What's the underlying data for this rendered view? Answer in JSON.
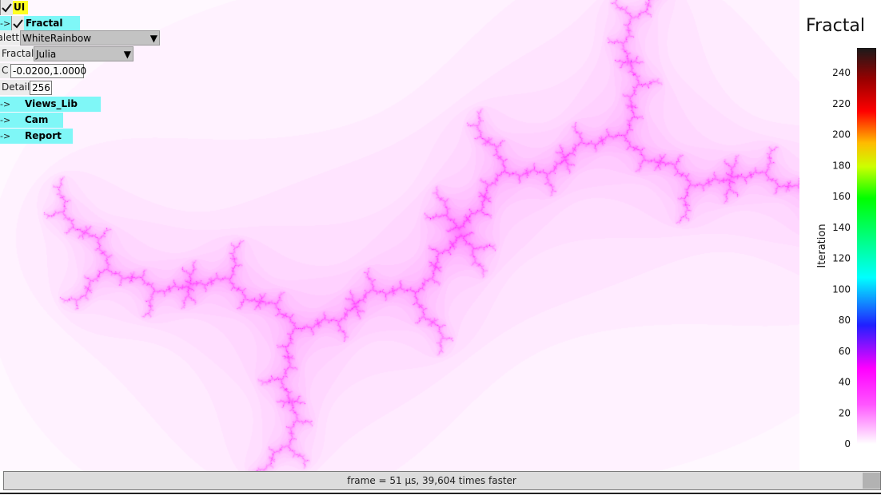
{
  "fractal": {
    "c_re": -0.02,
    "c_im": 1.0,
    "palette": "WhiteRainbow",
    "max_iterations": 256
  },
  "ui_tree": {
    "root_label": "UI",
    "root_checked": true,
    "fractal_node": {
      "arrow": "->",
      "label": "Fractal",
      "checked": true,
      "props": {
        "palette_label": "Palett",
        "palette_value": "WhiteRainbow",
        "fractal_label": "Fractal",
        "fractal_value": "Julia",
        "c_label": "C",
        "c_value": "-0.0200,1.0000",
        "detail_label": "Detail",
        "detail_value": "256"
      }
    },
    "collapsed_nodes": [
      {
        "arrow": "->",
        "label": "Views_Lib"
      },
      {
        "arrow": "->",
        "label": "Cam"
      },
      {
        "arrow": "->",
        "label": "Report"
      }
    ]
  },
  "colorbar": {
    "title": "Fractal",
    "axis_label": "Iteration",
    "ticks": [
      "0",
      "20",
      "40",
      "60",
      "80",
      "100",
      "120",
      "140",
      "160",
      "180",
      "200",
      "220",
      "240"
    ],
    "min": 0,
    "max": 256
  },
  "status_bar": {
    "text": "frame = 51 µs, 39,604 times faster"
  },
  "colors": {
    "node_highlight": "#7ff7f7",
    "root_highlight": "#ffff22",
    "combo_bg": "#c3c3c3"
  }
}
